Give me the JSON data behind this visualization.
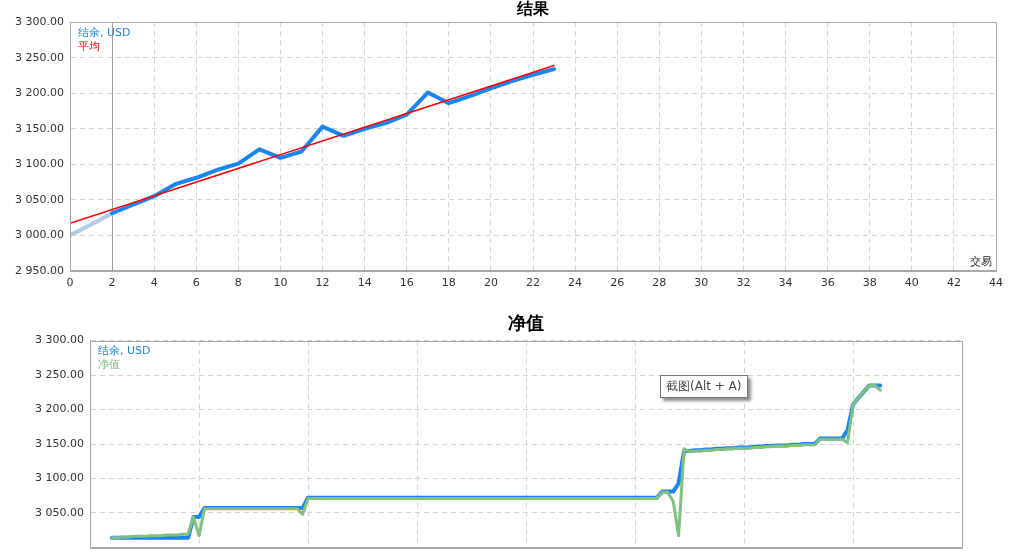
{
  "chart_data": [
    {
      "type": "line",
      "title": "结果",
      "xlabel": "交易",
      "legend": "top left",
      "grid": true,
      "xlim": [
        0,
        44
      ],
      "xticks": [
        0,
        2,
        4,
        6,
        8,
        10,
        12,
        14,
        16,
        18,
        20,
        22,
        24,
        26,
        28,
        30,
        32,
        34,
        36,
        38,
        40,
        42,
        44
      ],
      "ylim": [
        2950,
        3300
      ],
      "yticks": [
        {
          "value": 2950,
          "label": "2 950.00"
        },
        {
          "value": 3000,
          "label": "3 000.00"
        },
        {
          "value": 3050,
          "label": "3 050.00"
        },
        {
          "value": 3100,
          "label": "3 100.00"
        },
        {
          "value": 3150,
          "label": "3 150.00"
        },
        {
          "value": 3200,
          "label": "3 200.00"
        },
        {
          "value": 3250,
          "label": "3 250.00"
        },
        {
          "value": 3300,
          "label": "3 300.00"
        }
      ],
      "ref_lines": [
        {
          "axis": "x",
          "value": 2,
          "color": "#a0a0a0"
        }
      ],
      "series": [
        {
          "color": "#b4cce6",
          "x": [
            0,
            1,
            2
          ],
          "values": [
            3000,
            3015,
            3031
          ]
        },
        {
          "name": "结余, USD",
          "color": "#1a84f0",
          "x": [
            2,
            3,
            4,
            5,
            6,
            7,
            8,
            9,
            10,
            11,
            12,
            13,
            14,
            15,
            16,
            17,
            18,
            19,
            20,
            21,
            22,
            23
          ],
          "values": [
            3031,
            3043,
            3055,
            3072,
            3081,
            3092,
            3101,
            3121,
            3109,
            3118,
            3153,
            3140,
            3150,
            3158,
            3170,
            3201,
            3186,
            3196,
            3207,
            3217,
            3226,
            3234
          ]
        },
        {
          "name": "平均",
          "color": "#ff0000",
          "x": [
            0,
            23
          ],
          "values": [
            3017,
            3239
          ]
        }
      ]
    },
    {
      "type": "line",
      "title": "净值",
      "legend": "top left",
      "grid": true,
      "tick_labels": "y",
      "categories": [
        null,
        null,
        null,
        null,
        null,
        null,
        null,
        null,
        null,
        null,
        null,
        null,
        null,
        null,
        null,
        null,
        null,
        null,
        null,
        null,
        null,
        null,
        null,
        null,
        null,
        null,
        null,
        null,
        null,
        null,
        null,
        null,
        null,
        null,
        null,
        null,
        null,
        null,
        null,
        null,
        null,
        null,
        null,
        null,
        null,
        null,
        null,
        null,
        null,
        null,
        null,
        null,
        null,
        null,
        null,
        null,
        null,
        null,
        null,
        null,
        null,
        null,
        null,
        null,
        null,
        null,
        null,
        null,
        null,
        null,
        null,
        null,
        null,
        null,
        null,
        null,
        null,
        null,
        null,
        null,
        null,
        null,
        null,
        null,
        null,
        null,
        null,
        null,
        null,
        null,
        null,
        null,
        null,
        null,
        null,
        null,
        null,
        null,
        null,
        null,
        null,
        null,
        null,
        null,
        null,
        null,
        null,
        null,
        null,
        null,
        null,
        null,
        null,
        null,
        null,
        null,
        null,
        null,
        null,
        null,
        null,
        null,
        null,
        null,
        null,
        null,
        null,
        null,
        null,
        null,
        null,
        null,
        null,
        null,
        null,
        null,
        null,
        null,
        null,
        null,
        null,
        null,
        null,
        null,
        null,
        null,
        null,
        null,
        null,
        null,
        null,
        null,
        null,
        null,
        null,
        null,
        null,
        null,
        null,
        null,
        null
      ],
      "ylim": [
        3000,
        3300
      ],
      "yticks": [
        {
          "value": 3050,
          "label": "3 050.00"
        },
        {
          "value": 3100,
          "label": "3 100.00"
        },
        {
          "value": 3150,
          "label": "3 150.00"
        },
        {
          "value": 3200,
          "label": "3 200.00"
        },
        {
          "value": 3250,
          "label": "3 250.00"
        },
        {
          "value": 3300,
          "label": "3 300.00"
        }
      ],
      "annotations": [
        "截图(Alt + A)"
      ],
      "series": [
        {
          "name": "结余, USD",
          "color": "#1a84f0",
          "values": [
            null,
            null,
            null,
            null,
            3014,
            3014,
            3014,
            3014,
            3014,
            3014,
            3014,
            3014,
            3014,
            3014,
            3014,
            3014,
            3014,
            3014,
            3014,
            3044,
            3044,
            3057,
            3057,
            3057,
            3057,
            3057,
            3057,
            3057,
            3057,
            3057,
            3057,
            3057,
            3057,
            3057,
            3057,
            3057,
            3057,
            3057,
            3057,
            3057,
            3072,
            3072,
            3072,
            3072,
            3072,
            3072,
            3072,
            3072,
            3072,
            3072,
            3072,
            3072,
            3072,
            3072,
            3072,
            3072,
            3072,
            3072,
            3072,
            3072,
            3072,
            3072,
            3072,
            3072,
            3072,
            3072,
            3072,
            3072,
            3072,
            3072,
            3072,
            3072,
            3072,
            3072,
            3072,
            3072,
            3072,
            3072,
            3072,
            3072,
            3072,
            3072,
            3072,
            3072,
            3072,
            3072,
            3072,
            3072,
            3072,
            3072,
            3072,
            3072,
            3072,
            3072,
            3072,
            3072,
            3072,
            3072,
            3072,
            3072,
            3072,
            3072,
            3072,
            3072,
            3072,
            3081,
            3081,
            3081,
            3093,
            3140,
            3140,
            3141,
            3141,
            3142,
            3142,
            3143,
            3143,
            3144,
            3144,
            3145,
            3145,
            3145,
            3146,
            3146,
            3147,
            3147,
            3148,
            3148,
            3148,
            3149,
            3149,
            3150,
            3150,
            3150,
            3158,
            3158,
            3158,
            3158,
            3158,
            3170,
            3207,
            3217,
            3226,
            3235,
            3235,
            3235,
            null,
            null,
            null,
            null,
            null,
            null,
            null,
            null,
            null,
            null,
            null,
            null,
            null,
            null,
            null
          ]
        },
        {
          "name": "净值",
          "color": "#80c080",
          "values": [
            null,
            null,
            null,
            null,
            3014,
            3014,
            3015,
            3015,
            3016,
            3016,
            3016,
            3017,
            3017,
            3017,
            3018,
            3018,
            3018,
            3019,
            3019,
            3044,
            3017,
            3056,
            3056,
            3056,
            3056,
            3056,
            3056,
            3056,
            3056,
            3056,
            3056,
            3056,
            3056,
            3056,
            3056,
            3056,
            3056,
            3056,
            3056,
            3048,
            3071,
            3071,
            3071,
            3071,
            3071,
            3071,
            3071,
            3071,
            3071,
            3071,
            3071,
            3071,
            3071,
            3071,
            3071,
            3071,
            3071,
            3071,
            3071,
            3071,
            3071,
            3071,
            3071,
            3071,
            3071,
            3071,
            3071,
            3071,
            3071,
            3071,
            3071,
            3071,
            3071,
            3071,
            3071,
            3071,
            3071,
            3071,
            3071,
            3071,
            3071,
            3071,
            3071,
            3071,
            3071,
            3071,
            3071,
            3071,
            3071,
            3071,
            3071,
            3071,
            3071,
            3071,
            3071,
            3071,
            3071,
            3071,
            3071,
            3071,
            3071,
            3071,
            3071,
            3071,
            3071,
            3080,
            3080,
            3067,
            3017,
            3143,
            3139,
            3140,
            3140,
            3141,
            3141,
            3142,
            3142,
            3143,
            3143,
            3144,
            3144,
            3144,
            3145,
            3145,
            3146,
            3146,
            3147,
            3147,
            3147,
            3148,
            3148,
            3149,
            3149,
            3149,
            3157,
            3157,
            3157,
            3157,
            3157,
            3152,
            3207,
            3217,
            3226,
            3235,
            3235,
            3228,
            null,
            null,
            null,
            null,
            null,
            null,
            null,
            null,
            null,
            null,
            null,
            null,
            null,
            null,
            null
          ]
        }
      ]
    }
  ]
}
